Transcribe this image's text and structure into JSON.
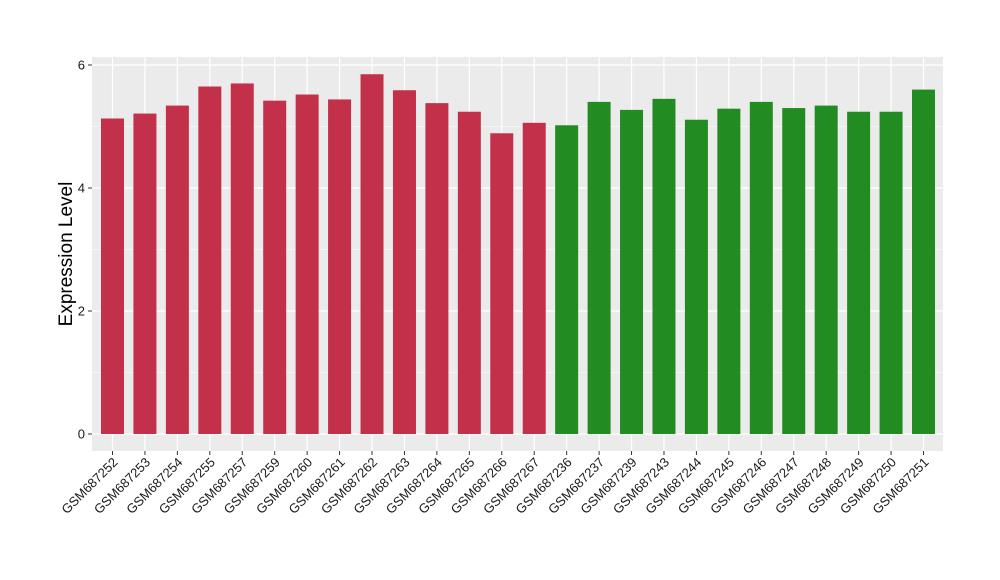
{
  "chart_data": {
    "type": "bar",
    "title": "",
    "xlabel": "",
    "ylabel": "Expression Level",
    "ylim": [
      0,
      6.15
    ],
    "yticks": [
      0,
      2,
      4,
      6
    ],
    "grid": true,
    "legend": "none",
    "categories": [
      "GSM687252",
      "GSM687253",
      "GSM687254",
      "GSM687255",
      "GSM687257",
      "GSM687259",
      "GSM687260",
      "GSM687261",
      "GSM687262",
      "GSM687263",
      "GSM687264",
      "GSM687265",
      "GSM687266",
      "GSM687267",
      "GSM687236",
      "GSM687237",
      "GSM687239",
      "GSM687243",
      "GSM687244",
      "GSM687245",
      "GSM687246",
      "GSM687247",
      "GSM687248",
      "GSM687249",
      "GSM687250",
      "GSM687251"
    ],
    "values": [
      5.13,
      5.21,
      5.34,
      5.65,
      5.7,
      5.42,
      5.52,
      5.44,
      5.85,
      5.59,
      5.38,
      5.24,
      4.89,
      5.06,
      5.02,
      5.4,
      5.27,
      5.45,
      5.11,
      5.29,
      5.4,
      5.3,
      5.34,
      5.24,
      5.24,
      5.6
    ],
    "groups": [
      0,
      0,
      0,
      0,
      0,
      0,
      0,
      0,
      0,
      0,
      0,
      0,
      0,
      0,
      1,
      1,
      1,
      1,
      1,
      1,
      1,
      1,
      1,
      1,
      1,
      1
    ],
    "colors": {
      "group_1": "#C3304A",
      "group_2": "#228B22",
      "panel_background": "#EBEBEB",
      "gridline": "#FFFFFF",
      "axis_text": "#1A1A1A"
    }
  }
}
